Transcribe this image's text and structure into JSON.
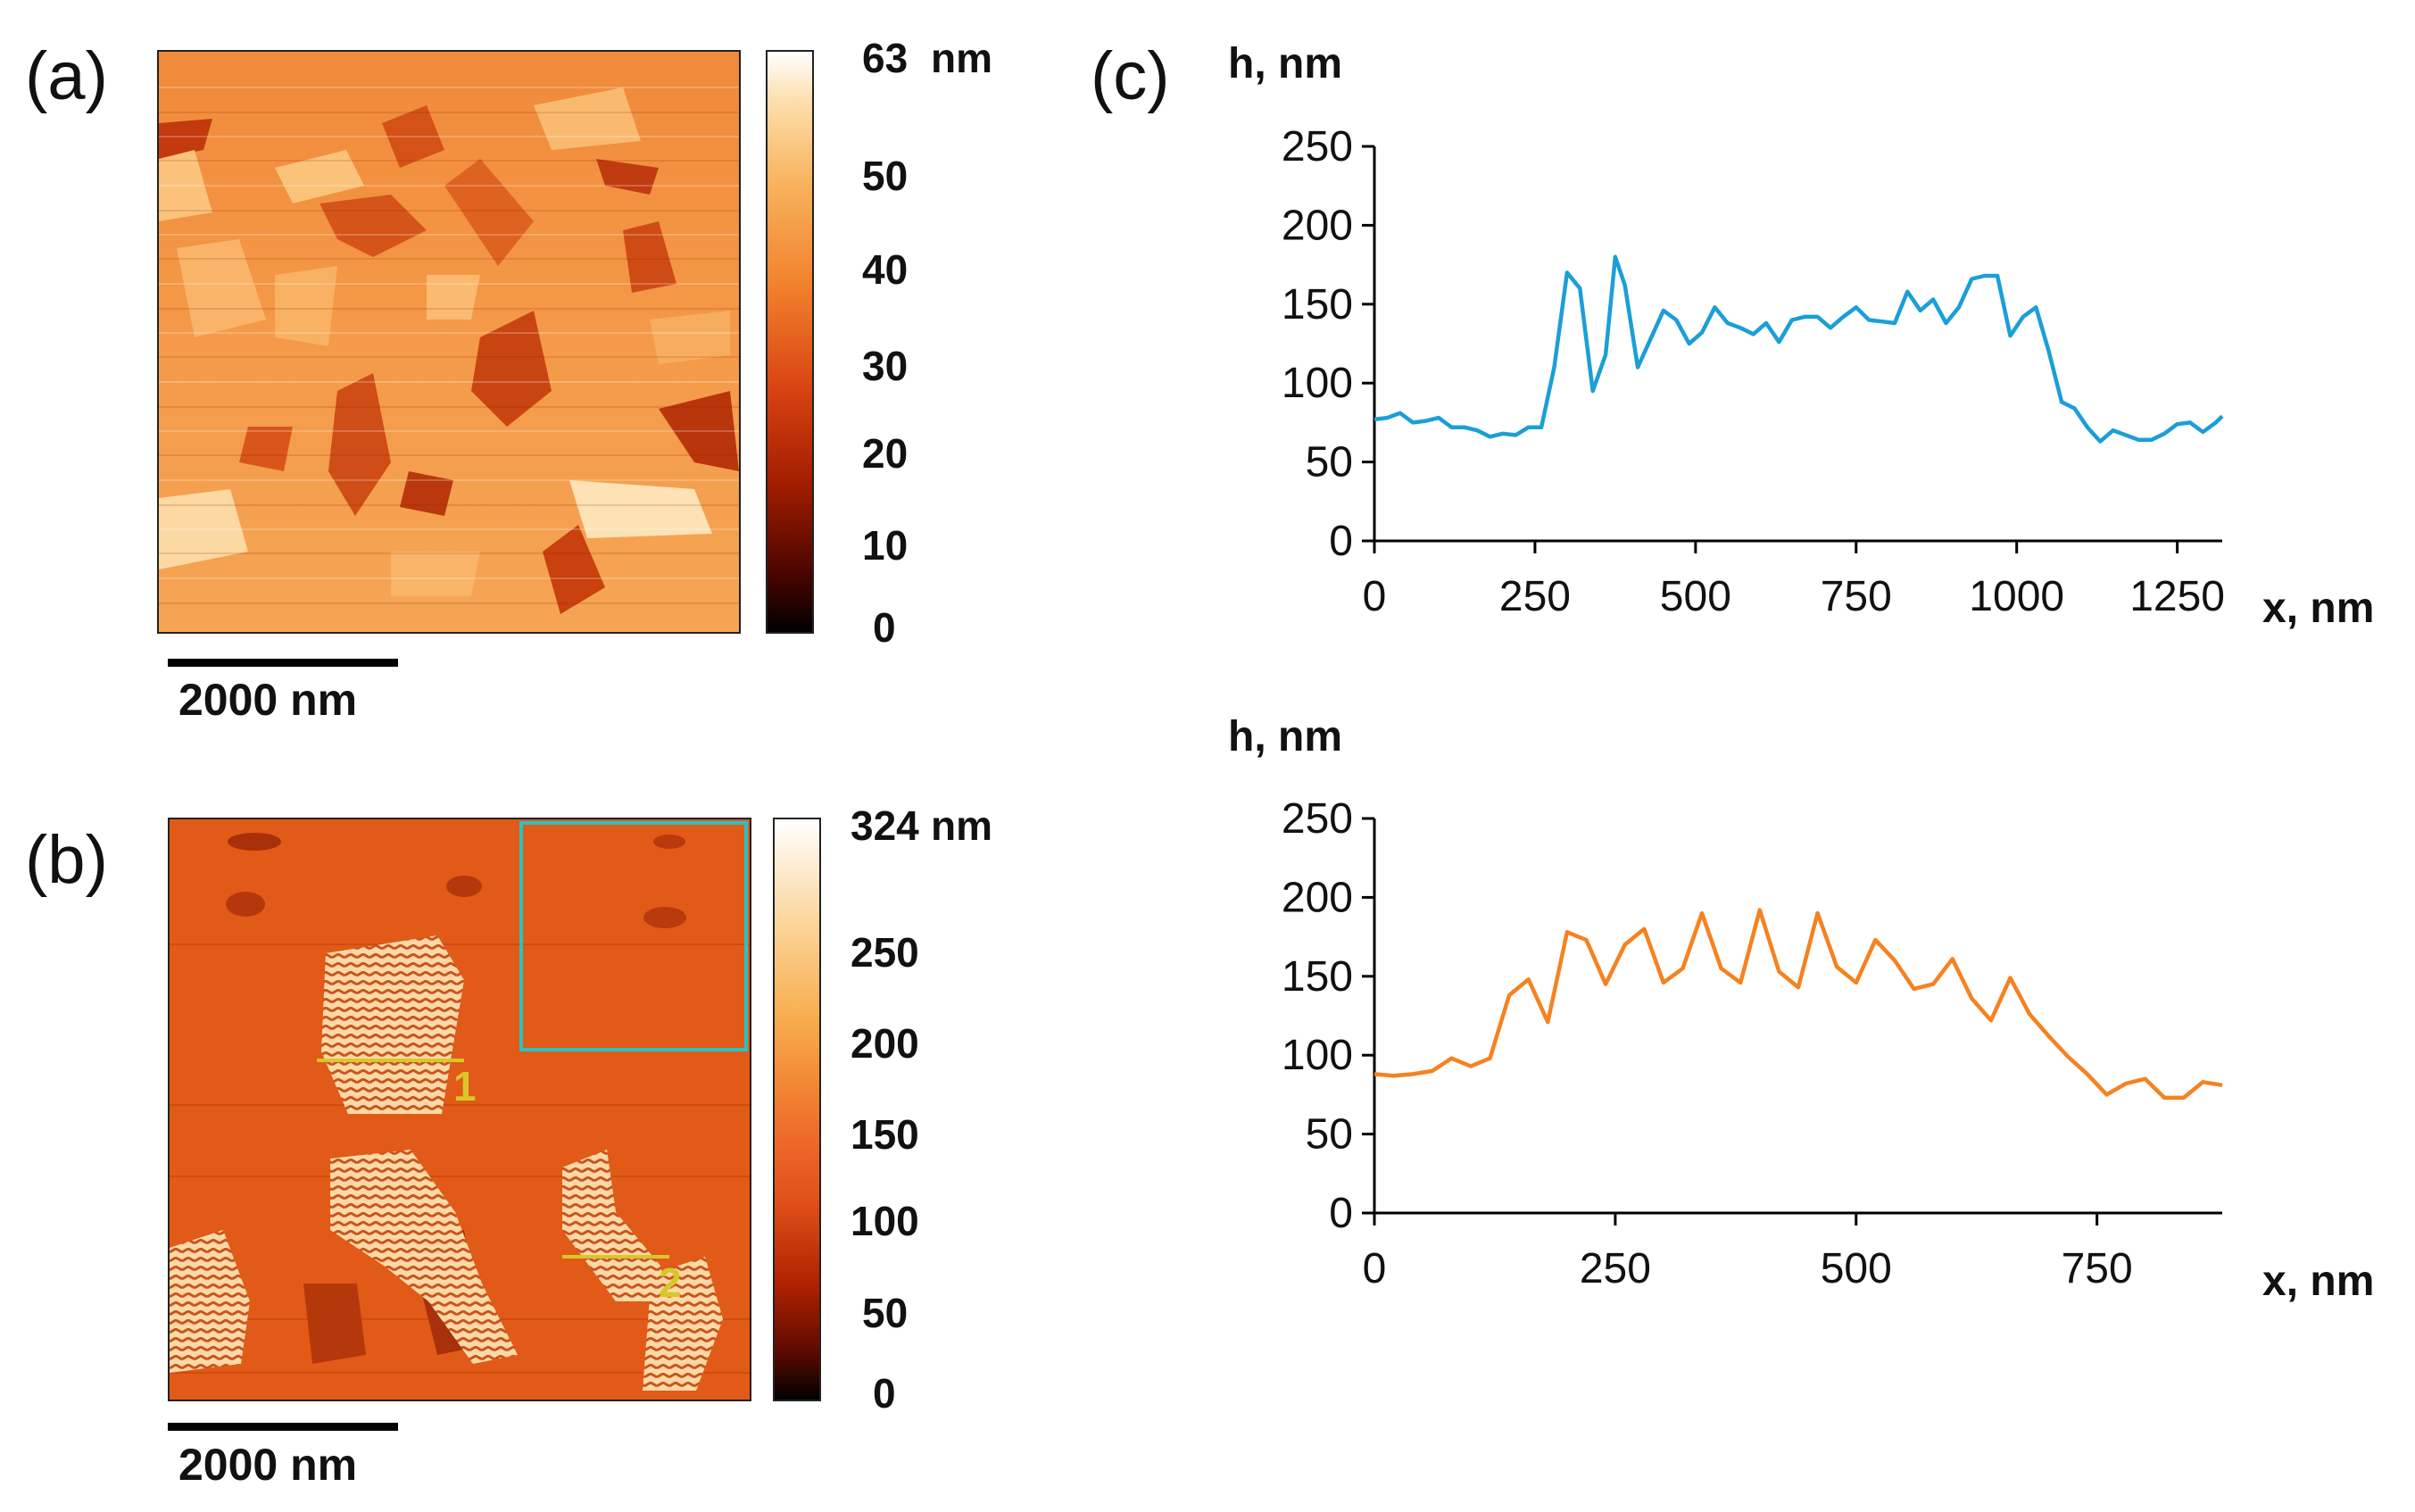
{
  "panels": {
    "a": {
      "letter": "(a)",
      "colorbar": {
        "max_label": "63",
        "unit": "nm",
        "ticks": [
          "50",
          "40",
          "30",
          "20",
          "10",
          "0"
        ]
      },
      "scalebar_label": "2000 nm"
    },
    "b": {
      "letter": "(b)",
      "colorbar": {
        "max_label": "324",
        "unit": "nm",
        "ticks": [
          "250",
          "200",
          "150",
          "100",
          "50",
          "0"
        ]
      },
      "scalebar_label": "2000 nm",
      "profile_labels": [
        "1",
        "2"
      ]
    },
    "c": {
      "letter": "(c)"
    }
  },
  "colors": {
    "series1": "#1a9fd6",
    "series2": "#f58220",
    "cyan_box": "#27c4c4",
    "profile_line": "#d8c72a"
  },
  "chart_data": [
    {
      "type": "line",
      "title": "h, nm",
      "xlabel": "x, nm",
      "ylabel": "h, nm",
      "xlim": [
        0,
        1320
      ],
      "ylim": [
        0,
        250
      ],
      "xticks": [
        "0",
        "250",
        "500",
        "750",
        "1000",
        "1250"
      ],
      "yticks": [
        "0",
        "50",
        "100",
        "150",
        "200",
        "250"
      ],
      "grid": false,
      "series": [
        {
          "name": "profile 1",
          "x": [
            0,
            20,
            40,
            60,
            80,
            100,
            120,
            140,
            160,
            180,
            200,
            220,
            240,
            260,
            280,
            300,
            320,
            340,
            360,
            375,
            390,
            410,
            430,
            450,
            470,
            490,
            510,
            530,
            550,
            570,
            590,
            610,
            630,
            650,
            670,
            690,
            710,
            730,
            750,
            770,
            790,
            810,
            830,
            850,
            870,
            890,
            910,
            930,
            950,
            970,
            990,
            1010,
            1030,
            1050,
            1070,
            1090,
            1110,
            1130,
            1150,
            1170,
            1190,
            1210,
            1230,
            1250,
            1270,
            1290,
            1310,
            1320
          ],
          "y": [
            77,
            78,
            81,
            75,
            76,
            78,
            72,
            72,
            70,
            66,
            68,
            67,
            72,
            72,
            110,
            170,
            160,
            95,
            118,
            180,
            162,
            110,
            128,
            146,
            140,
            125,
            132,
            148,
            138,
            135,
            131,
            138,
            126,
            140,
            142,
            142,
            135,
            142,
            148,
            140,
            139,
            138,
            158,
            146,
            153,
            138,
            148,
            166,
            168,
            168,
            130,
            142,
            148,
            120,
            88,
            84,
            72,
            63,
            70,
            67,
            64,
            64,
            68,
            74,
            75,
            69,
            75,
            79
          ]
        }
      ]
    },
    {
      "type": "line",
      "title": "h, nm",
      "xlabel": "x, nm",
      "ylabel": "h, nm",
      "xlim": [
        0,
        880
      ],
      "ylim": [
        0,
        250
      ],
      "xticks": [
        "0",
        "250",
        "500",
        "750"
      ],
      "yticks": [
        "0",
        "50",
        "100",
        "150",
        "200",
        "250"
      ],
      "grid": false,
      "series": [
        {
          "name": "profile 2",
          "x": [
            0,
            20,
            40,
            60,
            80,
            100,
            120,
            140,
            160,
            180,
            200,
            220,
            240,
            260,
            280,
            300,
            320,
            340,
            360,
            380,
            400,
            420,
            440,
            460,
            480,
            500,
            520,
            540,
            560,
            580,
            600,
            620,
            640,
            660,
            680,
            700,
            720,
            740,
            760,
            780,
            800,
            820,
            840,
            860,
            880
          ],
          "y": [
            88,
            87,
            88,
            90,
            98,
            93,
            98,
            138,
            148,
            121,
            178,
            173,
            145,
            170,
            180,
            146,
            155,
            190,
            155,
            146,
            192,
            153,
            143,
            190,
            156,
            146,
            173,
            160,
            142,
            145,
            161,
            136,
            122,
            149,
            126,
            112,
            99,
            88,
            75,
            82,
            85,
            73,
            73,
            83,
            81
          ]
        }
      ]
    }
  ]
}
